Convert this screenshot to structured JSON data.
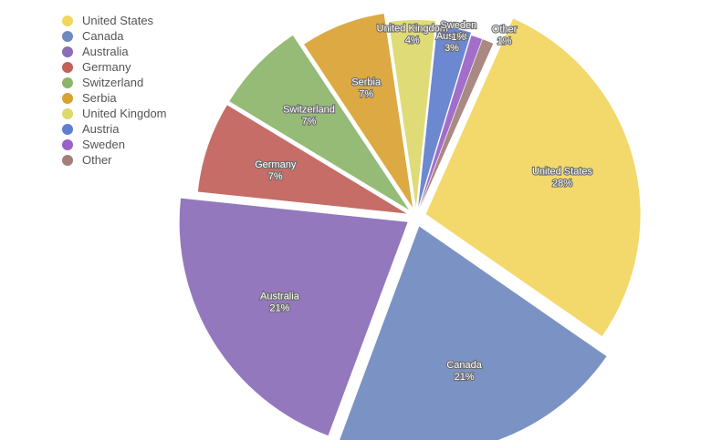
{
  "chart_data": {
    "type": "pie",
    "title": "",
    "style": "exploded",
    "legend_position": "top-left",
    "slices": [
      {
        "label": "United States",
        "value": 28,
        "display": "28%",
        "color": "#f2d55e"
      },
      {
        "label": "Canada",
        "value": 21,
        "display": "21%",
        "color": "#7089c0"
      },
      {
        "label": "Australia",
        "value": 21,
        "display": "21%",
        "color": "#8a6cb7"
      },
      {
        "label": "Germany",
        "value": 7,
        "display": "7%",
        "color": "#c1615a"
      },
      {
        "label": "Switzerland",
        "value": 7,
        "display": "7%",
        "color": "#8cb56b"
      },
      {
        "label": "Serbia",
        "value": 7,
        "display": "7%",
        "color": "#d9a233"
      },
      {
        "label": "United Kingdom",
        "value": 4,
        "display": "4%",
        "color": "#dcd86b"
      },
      {
        "label": "Austria",
        "value": 3,
        "display": "3%",
        "color": "#5f7ecc"
      },
      {
        "label": "Sweden",
        "value": 1,
        "display": "1%",
        "color": "#9a62c6"
      },
      {
        "label": "Other",
        "value": 1,
        "display": "1%",
        "color": "#a27f77"
      }
    ]
  }
}
